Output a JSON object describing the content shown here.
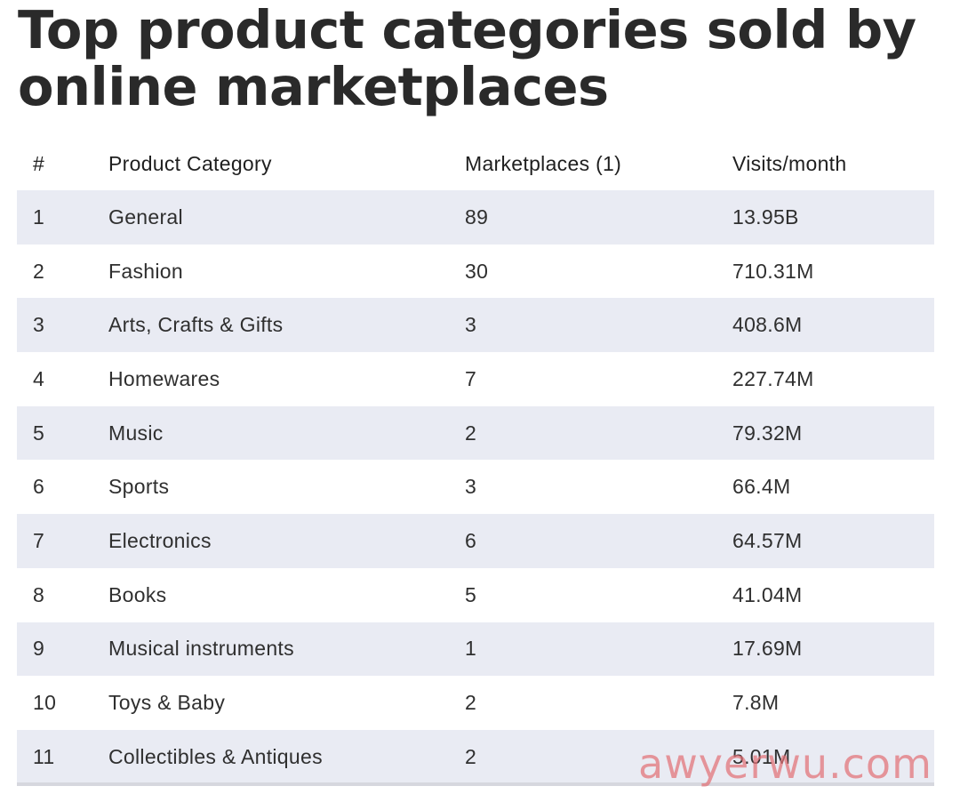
{
  "page": {
    "title": "Top product categories sold by online marketplaces"
  },
  "table": {
    "headers": [
      "#",
      "Product Category",
      "Marketplaces (1)",
      "Visits/month"
    ],
    "rows": [
      [
        "1",
        "General",
        "89",
        "13.95B"
      ],
      [
        "2",
        "Fashion",
        "30",
        "710.31M"
      ],
      [
        "3",
        "Arts, Crafts & Gifts",
        "3",
        "408.6M"
      ],
      [
        "4",
        "Homewares",
        "7",
        "227.74M"
      ],
      [
        "5",
        "Music",
        "2",
        "79.32M"
      ],
      [
        "6",
        "Sports",
        "3",
        "66.4M"
      ],
      [
        "7",
        "Electronics",
        "6",
        "64.57M"
      ],
      [
        "8",
        "Books",
        "5",
        "41.04M"
      ],
      [
        "9",
        "Musical instruments",
        "1",
        "17.69M"
      ],
      [
        "10",
        "Toys & Baby",
        "2",
        "7.8M"
      ],
      [
        "11",
        "Collectibles & Antiques",
        "2",
        "5.01M"
      ]
    ]
  },
  "watermark": {
    "text": "awyerwu.com"
  },
  "colors": {
    "stripe": "#e9ebf3",
    "text": "#2f2f2f",
    "watermark": "#e27076"
  }
}
